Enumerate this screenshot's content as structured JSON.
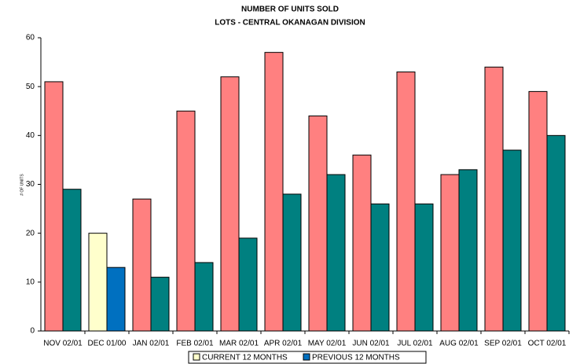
{
  "chart_data": {
    "type": "bar",
    "title": "NUMBER OF UNITS SOLD",
    "subtitle": "LOTS - CENTRAL OKANAGAN DIVISION",
    "y_label": "# OF UNITS",
    "categories": [
      "NOV 02/01",
      "DEC 01/00",
      "JAN 02/01",
      "FEB 02/01",
      "MAR 02/01",
      "APR 02/01",
      "MAY 02/01",
      "JUN 02/01",
      "JUL 02/01",
      "AUG 02/01",
      "SEP 02/01",
      "OCT 02/01"
    ],
    "series": [
      {
        "name": "CURRENT 12 MONTHS",
        "color": "#ffffcc",
        "colors": [
          "#ff8080",
          "#ffffcc",
          "#ff8080",
          "#ff8080",
          "#ff8080",
          "#ff8080",
          "#ff8080",
          "#ff8080",
          "#ff8080",
          "#ff8080",
          "#ff8080",
          "#ff8080"
        ],
        "values": [
          51,
          20,
          27,
          45,
          52,
          57,
          44,
          36,
          53,
          32,
          54,
          49
        ]
      },
      {
        "name": "PREVIOUS 12 MONTHS",
        "color": "#0070c0",
        "colors": [
          "#008080",
          "#0070c0",
          "#008080",
          "#008080",
          "#008080",
          "#008080",
          "#008080",
          "#008080",
          "#008080",
          "#008080",
          "#008080",
          "#008080"
        ],
        "values": [
          29,
          13,
          11,
          14,
          19,
          28,
          32,
          26,
          26,
          33,
          37,
          40
        ]
      }
    ],
    "ylim": [
      0,
      60
    ],
    "yticks": [
      0,
      10,
      20,
      30,
      40,
      50,
      60
    ],
    "grid": false,
    "legend": "bottom"
  }
}
